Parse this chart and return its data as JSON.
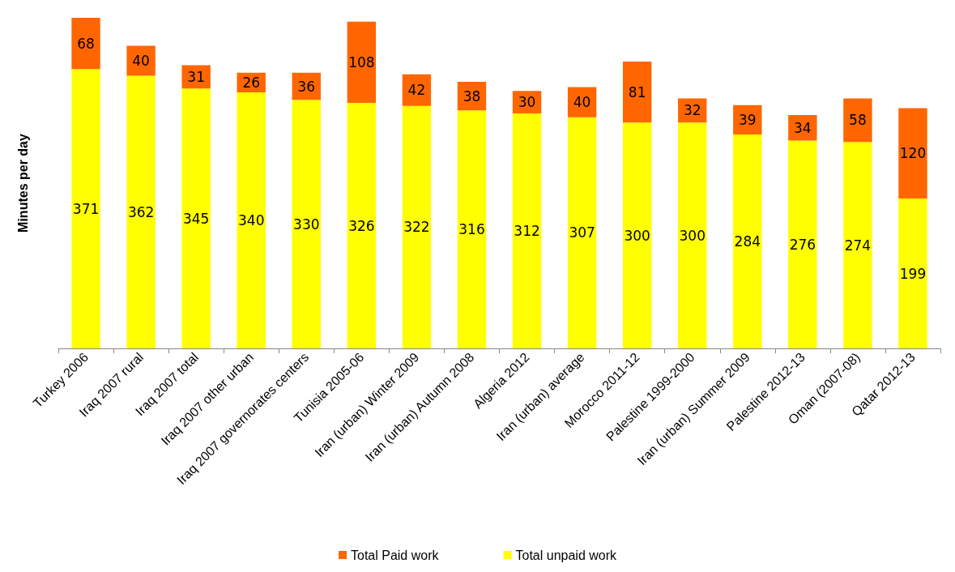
{
  "chart_data": {
    "type": "bar",
    "stacked": true,
    "ylabel": "Minutes per day",
    "categories": [
      "Turkey 2006",
      "Iraq 2007 rural",
      "Iraq 2007 total",
      "Iraq 2007 other urban",
      "Iraq 2007 governorates centers",
      "Tunisia 2005-06",
      "Iran (urban) Winter 2009",
      "Iran (urban) Autumn 2008",
      "Algeria 2012",
      "Iran (urban) average",
      "Morocco 2011-12",
      "Palestine 1999-2000",
      "Iran (urban) Summer 2009",
      "Palestine 2012-13",
      "Oman (2007-08)",
      "Qatar 2012-13"
    ],
    "series": [
      {
        "name": "Total unpaid work",
        "color": "#ffff00",
        "values": [
          371,
          362,
          345,
          340,
          330,
          326,
          322,
          316,
          312,
          307,
          300,
          300,
          284,
          276,
          274,
          199
        ]
      },
      {
        "name": "Total Paid work",
        "color": "#ff6600",
        "values": [
          68,
          40,
          31,
          26,
          36,
          108,
          42,
          38,
          30,
          40,
          81,
          32,
          39,
          34,
          58,
          120
        ]
      }
    ],
    "data_labels": true,
    "legend": "bottom",
    "grid": false,
    "tick_labels": "x"
  }
}
